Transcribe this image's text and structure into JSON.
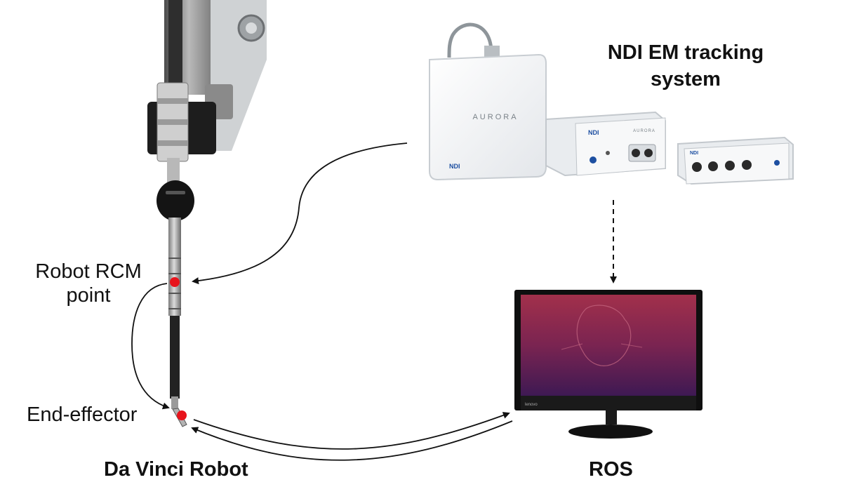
{
  "labels": {
    "em_system": "NDI EM tracking system",
    "rcm_line1": "Robot RCM",
    "rcm_line2": "point",
    "end_effector": "End-effector",
    "robot": "Da Vinci Robot",
    "ros": "ROS"
  },
  "device_marks": {
    "brand_large": "AURORA",
    "brand_small": "AURORA",
    "ndi_logo": "NDI",
    "monitor_brand": "lenovo"
  },
  "colors": {
    "marker_red": "#e8141c",
    "arrow": "#111111",
    "monitor_screen_top": "#9c2d4a",
    "monitor_screen_bottom": "#3d1a52"
  }
}
